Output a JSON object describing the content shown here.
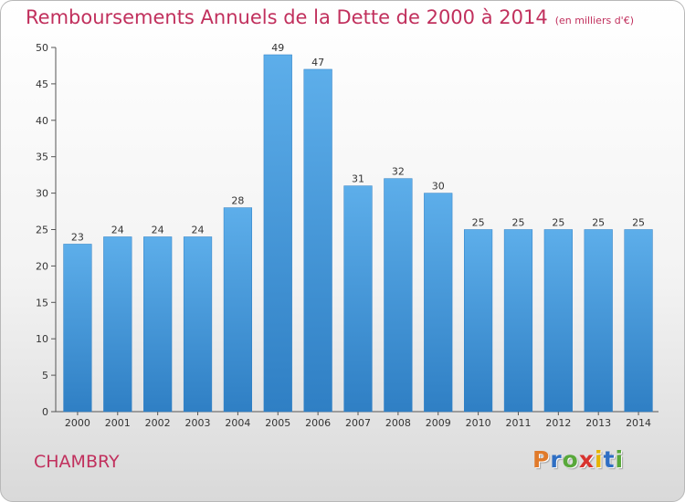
{
  "chart_data": {
    "type": "bar",
    "title": "Remboursements Annuels de la Dette de 2000 à 2014",
    "subtitle": "(en milliers d'€)",
    "categories": [
      "2000",
      "2001",
      "2002",
      "2003",
      "2004",
      "2005",
      "2006",
      "2007",
      "2008",
      "2009",
      "2010",
      "2011",
      "2012",
      "2013",
      "2014"
    ],
    "values": [
      23,
      24,
      24,
      24,
      28,
      49,
      47,
      31,
      32,
      30,
      25,
      25,
      25,
      25,
      25
    ],
    "ylim": [
      0,
      50
    ],
    "yticks": [
      "0",
      "5",
      "10",
      "15",
      "20",
      "25",
      "30",
      "35",
      "40",
      "45",
      "50"
    ],
    "xlabel": "",
    "ylabel": "",
    "grid": false,
    "bar_color": "#4b9ee0"
  },
  "commune": "CHAMBRY",
  "logo": {
    "letters": [
      "P",
      "r",
      "o",
      "x",
      "i",
      "t",
      "i"
    ],
    "colors": [
      "#e07a2a",
      "#2f6fc4",
      "#58a83a",
      "#d8332f",
      "#e6b400",
      "#2f6fc4",
      "#58a83a"
    ]
  }
}
